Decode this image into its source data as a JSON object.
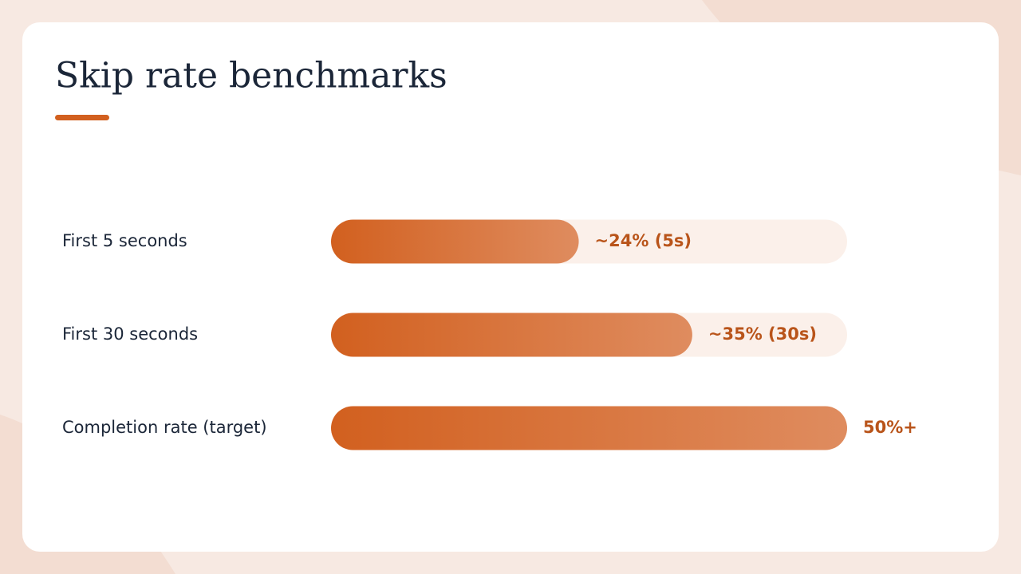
{
  "chart_data": {
    "type": "hbar",
    "title": "Skip rate benchmarks",
    "categories": [
      "First 5 seconds",
      "First 30 seconds",
      "Completion rate (target)"
    ],
    "values": [
      24,
      35,
      50
    ],
    "value_labels": [
      "~24% (5s)",
      "~35% (30s)",
      "50%+"
    ],
    "color": "#d2601f",
    "xlim": [
      0,
      50
    ]
  }
}
